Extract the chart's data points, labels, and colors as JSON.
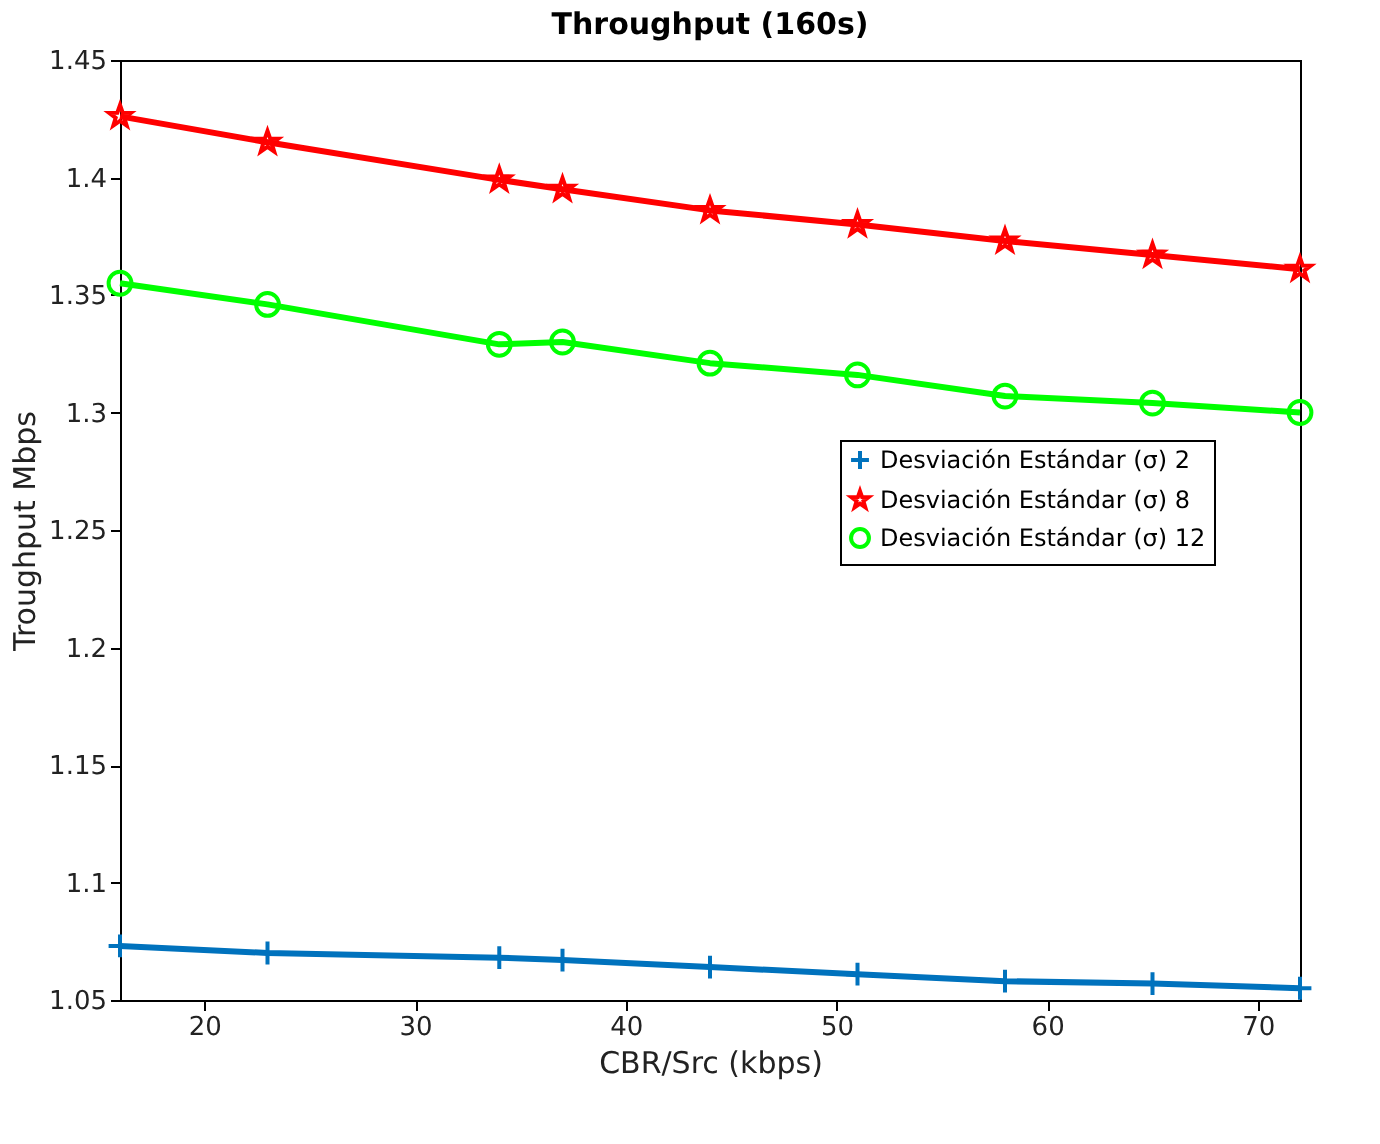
{
  "chart_data": {
    "type": "line",
    "title": "Throughput (160s)",
    "xlabel": "CBR/Src (kbps)",
    "ylabel": "Troughput Mbps",
    "x": [
      16,
      23,
      34,
      37,
      44,
      51,
      58,
      65,
      72
    ],
    "xlim": [
      16,
      72
    ],
    "xticks": [
      20,
      30,
      40,
      50,
      60,
      70
    ],
    "ylim": [
      1.05,
      1.45
    ],
    "yticks": [
      1.05,
      1.1,
      1.15,
      1.2,
      1.25,
      1.3,
      1.35,
      1.4,
      1.45
    ],
    "grid": false,
    "legend": "right",
    "line_style": "solid",
    "series": [
      {
        "name": "Desviación Estándar (σ) 2",
        "color": "#0072bd",
        "marker": "cross",
        "values": [
          1.073,
          1.07,
          1.068,
          1.067,
          1.064,
          1.061,
          1.058,
          1.057,
          1.055
        ]
      },
      {
        "name": "Desviación Estándar (σ) 8",
        "color": "#ff0000",
        "marker": "star",
        "values": [
          1.426,
          1.415,
          1.399,
          1.395,
          1.386,
          1.38,
          1.373,
          1.367,
          1.361
        ]
      },
      {
        "name": "Desviación Estándar (σ) 12",
        "color": "#00ff00",
        "marker": "circle",
        "values": [
          1.355,
          1.346,
          1.329,
          1.33,
          1.321,
          1.316,
          1.307,
          1.304,
          1.3
        ]
      }
    ]
  }
}
